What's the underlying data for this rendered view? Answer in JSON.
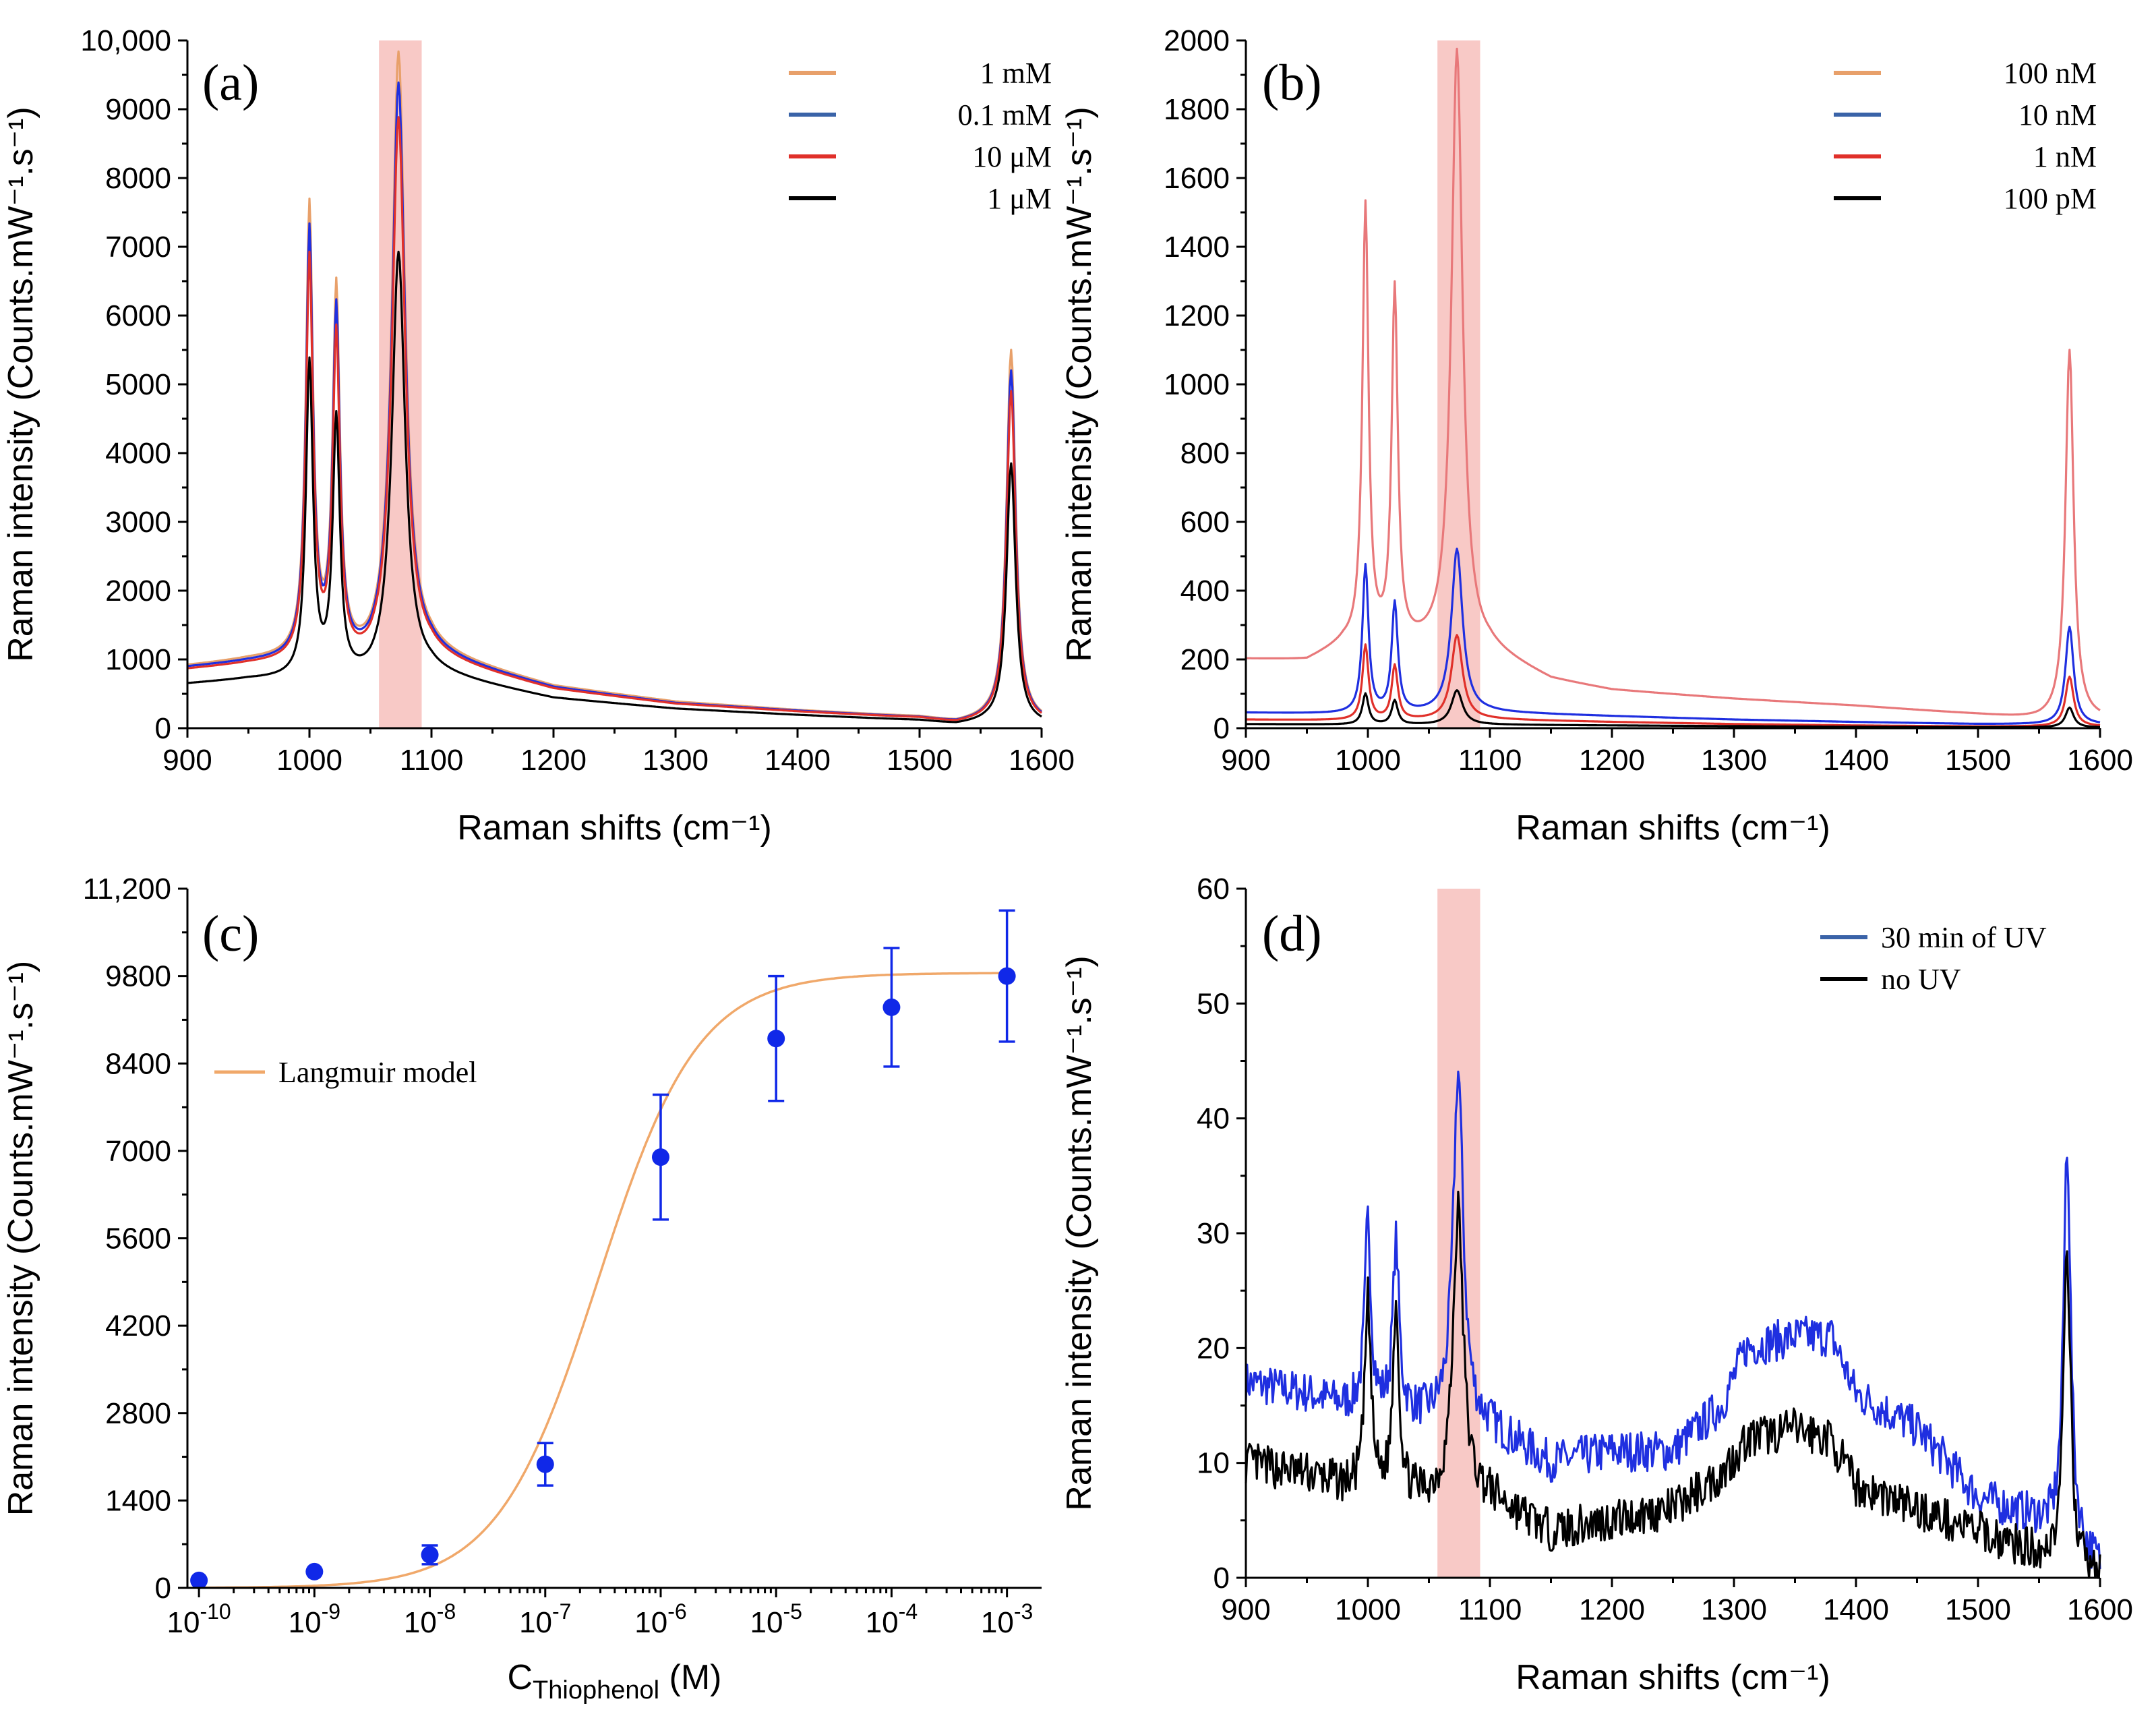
{
  "colors": {
    "orange": "#E8A06A",
    "blue": "#1F2FE0",
    "legend_blue": "#3A63A8",
    "red": "#E0302A",
    "black": "#000000",
    "salmon": "#E8787A",
    "highlight": "#F8C9C6",
    "langmuir": "#F0A86A",
    "marker": "#1028E8"
  },
  "chart_data": [
    {
      "panel": "(a)",
      "type": "line",
      "xlabel": "Raman shifts (cm⁻¹)",
      "ylabel": "Raman intensity (Counts.mW⁻¹.s⁻¹)",
      "xlim": [
        900,
        1600
      ],
      "ylim": [
        0,
        10000
      ],
      "xticks": [
        "900",
        "1000",
        "1100",
        "1200",
        "1300",
        "1400",
        "1500",
        "1600"
      ],
      "yticks": [
        "0",
        "1000",
        "2000",
        "3000",
        "4000",
        "5000",
        "6000",
        "7000",
        "8000",
        "9000",
        "10,000"
      ],
      "highlight_x": [
        1057,
        1092
      ],
      "legend_position": "top-right",
      "series": [
        {
          "name": "1 mM",
          "color_key": "orange",
          "legend_color_key": "orange",
          "baseline": [
            [
              900,
              900
            ],
            [
              950,
              980
            ],
            [
              1000,
              1000
            ],
            [
              1050,
              900
            ],
            [
              1100,
              1060
            ],
            [
              1200,
              600
            ],
            [
              1300,
              380
            ],
            [
              1400,
              260
            ],
            [
              1500,
              160
            ],
            [
              1530,
              80
            ],
            [
              1555,
              120
            ],
            [
              1600,
              80
            ]
          ],
          "peaks": [
            [
              1000,
              7500,
              3.5
            ],
            [
              1022,
              6250,
              3.5
            ],
            [
              1073,
              9800,
              6.5
            ],
            [
              1575,
              5500,
              4.5
            ]
          ]
        },
        {
          "name": "0.1 mM",
          "color_key": "blue",
          "legend_color_key": "legend_blue",
          "baseline": [
            [
              900,
              880
            ],
            [
              950,
              950
            ],
            [
              1000,
              980
            ],
            [
              1050,
              880
            ],
            [
              1100,
              1030
            ],
            [
              1200,
              580
            ],
            [
              1300,
              360
            ],
            [
              1400,
              250
            ],
            [
              1500,
              150
            ],
            [
              1530,
              75
            ],
            [
              1555,
              110
            ],
            [
              1600,
              75
            ]
          ],
          "peaks": [
            [
              1000,
              7150,
              3.5
            ],
            [
              1022,
              5950,
              3.5
            ],
            [
              1073,
              9350,
              6.5
            ],
            [
              1575,
              5200,
              4.5
            ]
          ]
        },
        {
          "name": "10 μM",
          "color_key": "red",
          "legend_color_key": "red",
          "baseline": [
            [
              900,
              850
            ],
            [
              950,
              920
            ],
            [
              1000,
              950
            ],
            [
              1050,
              850
            ],
            [
              1100,
              1000
            ],
            [
              1200,
              560
            ],
            [
              1300,
              350
            ],
            [
              1400,
              240
            ],
            [
              1500,
              145
            ],
            [
              1530,
              70
            ],
            [
              1555,
              105
            ],
            [
              1600,
              70
            ]
          ],
          "peaks": [
            [
              1000,
              6750,
              3.5
            ],
            [
              1022,
              5600,
              3.5
            ],
            [
              1073,
              8850,
              6.5
            ],
            [
              1575,
              4900,
              4.5
            ]
          ]
        },
        {
          "name": "1 μM",
          "color_key": "black",
          "legend_color_key": "black",
          "baseline": [
            [
              900,
              640
            ],
            [
              950,
              700
            ],
            [
              1000,
              700
            ],
            [
              1050,
              650
            ],
            [
              1100,
              780
            ],
            [
              1200,
              430
            ],
            [
              1300,
              280
            ],
            [
              1400,
              190
            ],
            [
              1500,
              110
            ],
            [
              1530,
              50
            ],
            [
              1555,
              80
            ],
            [
              1600,
              50
            ]
          ],
          "peaks": [
            [
              1000,
              5250,
              3.5
            ],
            [
              1022,
              4400,
              3.5
            ],
            [
              1073,
              6900,
              6.5
            ],
            [
              1575,
              3850,
              4.5
            ]
          ]
        }
      ]
    },
    {
      "panel": "(b)",
      "type": "line",
      "xlabel": "Raman shifts (cm⁻¹)",
      "ylabel": "Raman intensity (Counts.mW⁻¹.s⁻¹)",
      "xlim": [
        900,
        1600
      ],
      "ylim": [
        0,
        2000
      ],
      "xticks": [
        "900",
        "1000",
        "1100",
        "1200",
        "1300",
        "1400",
        "1500",
        "1600"
      ],
      "yticks": [
        "0",
        "200",
        "400",
        "600",
        "800",
        "1000",
        "1200",
        "1400",
        "1600",
        "1800",
        "2000"
      ],
      "highlight_x": [
        1057,
        1092
      ],
      "legend_position": "top-right",
      "series": [
        {
          "name": "100 nM",
          "color_key": "salmon",
          "legend_color_key": "orange",
          "baseline": [
            [
              900,
              200
            ],
            [
              950,
              195
            ],
            [
              980,
              240
            ],
            [
              1040,
              230
            ],
            [
              1100,
              220
            ],
            [
              1150,
              140
            ],
            [
              1200,
              110
            ],
            [
              1300,
              85
            ],
            [
              1400,
              65
            ],
            [
              1500,
              40
            ],
            [
              1550,
              25
            ],
            [
              1600,
              25
            ]
          ],
          "peaks": [
            [
              998,
              1510,
              3
            ],
            [
              1022,
              1260,
              3
            ],
            [
              1073,
              1970,
              5.5
            ],
            [
              1575,
              1100,
              4
            ]
          ]
        },
        {
          "name": "10 nM",
          "color_key": "blue",
          "legend_color_key": "legend_blue",
          "baseline": [
            [
              900,
              45
            ],
            [
              1000,
              40
            ],
            [
              1100,
              45
            ],
            [
              1200,
              35
            ],
            [
              1300,
              25
            ],
            [
              1400,
              18
            ],
            [
              1500,
              12
            ],
            [
              1600,
              10
            ]
          ],
          "peaks": [
            [
              998,
              470,
              3
            ],
            [
              1022,
              360,
              3
            ],
            [
              1073,
              520,
              5.5
            ],
            [
              1575,
              295,
              4
            ]
          ]
        },
        {
          "name": "1 nM",
          "color_key": "red",
          "legend_color_key": "red",
          "baseline": [
            [
              900,
              25
            ],
            [
              1000,
              22
            ],
            [
              1100,
              25
            ],
            [
              1200,
              18
            ],
            [
              1300,
              12
            ],
            [
              1400,
              8
            ],
            [
              1500,
              5
            ],
            [
              1600,
              5
            ]
          ],
          "peaks": [
            [
              998,
              240,
              3
            ],
            [
              1022,
              180,
              3
            ],
            [
              1073,
              270,
              5.5
            ],
            [
              1575,
              150,
              4
            ]
          ]
        },
        {
          "name": "100 pM",
          "color_key": "black",
          "legend_color_key": "black",
          "baseline": [
            [
              900,
              12
            ],
            [
              1000,
              10
            ],
            [
              1100,
              10
            ],
            [
              1200,
              8
            ],
            [
              1300,
              6
            ],
            [
              1400,
              4
            ],
            [
              1500,
              3
            ],
            [
              1600,
              2
            ]
          ],
          "peaks": [
            [
              998,
              100,
              3
            ],
            [
              1022,
              80,
              3
            ],
            [
              1073,
              110,
              5.5
            ],
            [
              1575,
              60,
              4
            ]
          ]
        }
      ]
    },
    {
      "panel": "(c)",
      "type": "scatter",
      "xlabel_main": "C",
      "xlabel_sub": "Thiophenol",
      "xlabel_unit": " (M)",
      "ylabel": "Raman intensity (Counts.mW⁻¹.s⁻¹)",
      "xscale": "log",
      "xlim_log10": [
        -10.1,
        -2.7
      ],
      "ylim": [
        0,
        11200
      ],
      "xticks": [
        {
          "base": "10",
          "exp": "-10",
          "log": -10
        },
        {
          "base": "10",
          "exp": "-9",
          "log": -9
        },
        {
          "base": "10",
          "exp": "-8",
          "log": -8
        },
        {
          "base": "10",
          "exp": "-7",
          "log": -7
        },
        {
          "base": "10",
          "exp": "-6",
          "log": -6
        },
        {
          "base": "10",
          "exp": "-5",
          "log": -5
        },
        {
          "base": "10",
          "exp": "-4",
          "log": -4
        },
        {
          "base": "10",
          "exp": "-3",
          "log": -3
        }
      ],
      "yticks": [
        "0",
        "1400",
        "2800",
        "4200",
        "5600",
        "7000",
        "8400",
        "9800",
        "11,200"
      ],
      "legend_position": "upper-left",
      "fit": {
        "name": "Langmuir model",
        "color_key": "langmuir",
        "model": "langmuir",
        "Imax": 9850,
        "K": 3500000
      },
      "points": [
        {
          "x": 1e-10,
          "y": 120,
          "err": 0
        },
        {
          "x": 1e-09,
          "y": 260,
          "err": 0
        },
        {
          "x": 1e-08,
          "y": 530,
          "err": 150
        },
        {
          "x": 1e-07,
          "y": 1980,
          "err": 340
        },
        {
          "x": 1e-06,
          "y": 6900,
          "err": 1000
        },
        {
          "x": 1e-05,
          "y": 8800,
          "err": 1000
        },
        {
          "x": 0.0001,
          "y": 9300,
          "err": 950
        },
        {
          "x": 0.001,
          "y": 9800,
          "err": 1050
        }
      ]
    },
    {
      "panel": "(d)",
      "type": "line",
      "xlabel": "Raman shifts (cm⁻¹)",
      "ylabel": "Raman intensity (Counts.mW⁻¹.s⁻¹)",
      "xlim": [
        900,
        1600
      ],
      "ylim": [
        0,
        60
      ],
      "xticks": [
        "900",
        "1000",
        "1100",
        "1200",
        "1300",
        "1400",
        "1500",
        "1600"
      ],
      "yticks": [
        "0",
        "10",
        "20",
        "30",
        "40",
        "50",
        "60"
      ],
      "highlight_x": [
        1057,
        1092
      ],
      "legend_position": "top-right",
      "series": [
        {
          "name": "30 min of UV",
          "color_key": "blue",
          "legend_color_key": "legend_blue",
          "noise": 1.8,
          "seed": 7,
          "baseline": [
            [
              900,
              17
            ],
            [
              950,
              16
            ],
            [
              980,
              15
            ],
            [
              1040,
              14
            ],
            [
              1100,
              13
            ],
            [
              1150,
              10
            ],
            [
              1200,
              11
            ],
            [
              1250,
              11
            ],
            [
              1290,
              15
            ],
            [
              1310,
              20
            ],
            [
              1350,
              21
            ],
            [
              1380,
              21
            ],
            [
              1400,
              16
            ],
            [
              1450,
              13
            ],
            [
              1500,
              7
            ],
            [
              1550,
              5
            ],
            [
              1600,
              1
            ]
          ],
          "peaks": [
            [
              1000,
              31,
              3
            ],
            [
              1023,
              29,
              3
            ],
            [
              1074,
              44,
              5
            ],
            [
              1573,
              38,
              3.5
            ]
          ]
        },
        {
          "name": "no UV",
          "color_key": "black",
          "legend_color_key": "black",
          "noise": 1.8,
          "seed": 13,
          "baseline": [
            [
              900,
              10
            ],
            [
              950,
              9
            ],
            [
              980,
              8
            ],
            [
              1040,
              7
            ],
            [
              1100,
              7
            ],
            [
              1150,
              4
            ],
            [
              1200,
              5
            ],
            [
              1250,
              6
            ],
            [
              1290,
              9
            ],
            [
              1310,
              12
            ],
            [
              1350,
              13
            ],
            [
              1380,
              12
            ],
            [
              1400,
              8
            ],
            [
              1450,
              6
            ],
            [
              1500,
              4
            ],
            [
              1550,
              2
            ],
            [
              1600,
              0
            ]
          ],
          "peaks": [
            [
              1000,
              24,
              3
            ],
            [
              1023,
              24,
              3
            ],
            [
              1074,
              32,
              5
            ],
            [
              1573,
              28,
              3.5
            ]
          ]
        }
      ]
    }
  ]
}
